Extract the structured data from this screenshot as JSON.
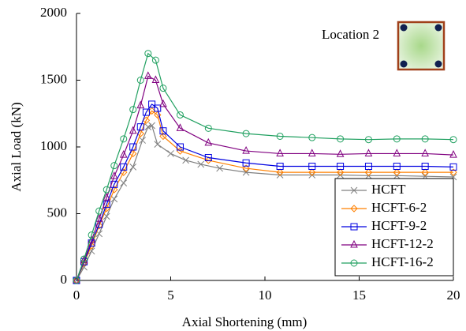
{
  "chart_data": {
    "type": "line",
    "xlabel": "Axial Shortening (mm)",
    "ylabel": "Axial Load (kN)",
    "annotation": "Location 2",
    "xlim": [
      0,
      20
    ],
    "xticks": [
      0,
      5,
      10,
      15,
      20
    ],
    "ylim": [
      0,
      2000
    ],
    "yticks": [
      0,
      500,
      1000,
      1500,
      2000
    ],
    "legend": "lower right",
    "series": [
      {
        "name": "HCFT",
        "color": "#808080",
        "marker": "x",
        "x": [
          0,
          0.4,
          0.8,
          1.2,
          1.6,
          2,
          2.5,
          3,
          3.5,
          3.8,
          4.0,
          4.3,
          5,
          5.8,
          6.6,
          7.6,
          9,
          10.8,
          12.5,
          14,
          15.5,
          17,
          18.5,
          20
        ],
        "values": [
          0,
          100,
          220,
          350,
          480,
          610,
          730,
          850,
          1050,
          1150,
          1160,
          1020,
          950,
          900,
          870,
          840,
          810,
          790,
          790,
          790,
          785,
          785,
          780,
          775
        ]
      },
      {
        "name": "HCFT-6-2",
        "color": "#ff8000",
        "marker": "diamond",
        "x": [
          0,
          0.4,
          0.8,
          1.2,
          1.6,
          2,
          2.5,
          3,
          3.4,
          3.7,
          4.0,
          4.3,
          4.6,
          5.5,
          7,
          9,
          10.8,
          12.5,
          14,
          15.5,
          17,
          18.5,
          20
        ],
        "values": [
          0,
          130,
          260,
          410,
          540,
          680,
          810,
          950,
          1100,
          1200,
          1270,
          1240,
          1080,
          970,
          900,
          840,
          810,
          810,
          810,
          810,
          810,
          810,
          810
        ]
      },
      {
        "name": "HCFT-9-2",
        "color": "#0000e0",
        "marker": "square",
        "x": [
          0,
          0.4,
          0.8,
          1.2,
          1.6,
          2,
          2.5,
          3,
          3.4,
          3.7,
          4.0,
          4.3,
          4.6,
          5.5,
          7,
          9,
          10.8,
          12.5,
          14,
          15.5,
          17,
          18.5,
          20
        ],
        "values": [
          0,
          140,
          280,
          420,
          570,
          720,
          850,
          1000,
          1150,
          1260,
          1320,
          1290,
          1120,
          1000,
          920,
          880,
          855,
          855,
          855,
          855,
          855,
          855,
          850
        ]
      },
      {
        "name": "HCFT-12-2",
        "color": "#800080",
        "marker": "triangle",
        "x": [
          0,
          0.4,
          0.8,
          1.2,
          1.6,
          2,
          2.5,
          3,
          3.4,
          3.8,
          4.2,
          4.6,
          5.5,
          7,
          9,
          10.8,
          12.5,
          14,
          15.5,
          17,
          18.5,
          20
        ],
        "values": [
          0,
          150,
          300,
          460,
          620,
          780,
          940,
          1120,
          1310,
          1530,
          1500,
          1320,
          1140,
          1030,
          970,
          950,
          950,
          945,
          950,
          950,
          950,
          940
        ]
      },
      {
        "name": "HCFT-16-2",
        "color": "#20a060",
        "marker": "circle",
        "x": [
          0,
          0.4,
          0.8,
          1.2,
          1.6,
          2,
          2.5,
          3,
          3.4,
          3.8,
          4.2,
          4.6,
          5.5,
          7,
          9,
          10.8,
          12.5,
          14,
          15.5,
          17,
          18.5,
          20
        ],
        "values": [
          0,
          160,
          340,
          520,
          680,
          860,
          1060,
          1280,
          1500,
          1700,
          1650,
          1440,
          1240,
          1140,
          1100,
          1080,
          1070,
          1060,
          1055,
          1060,
          1060,
          1055
        ]
      }
    ]
  }
}
